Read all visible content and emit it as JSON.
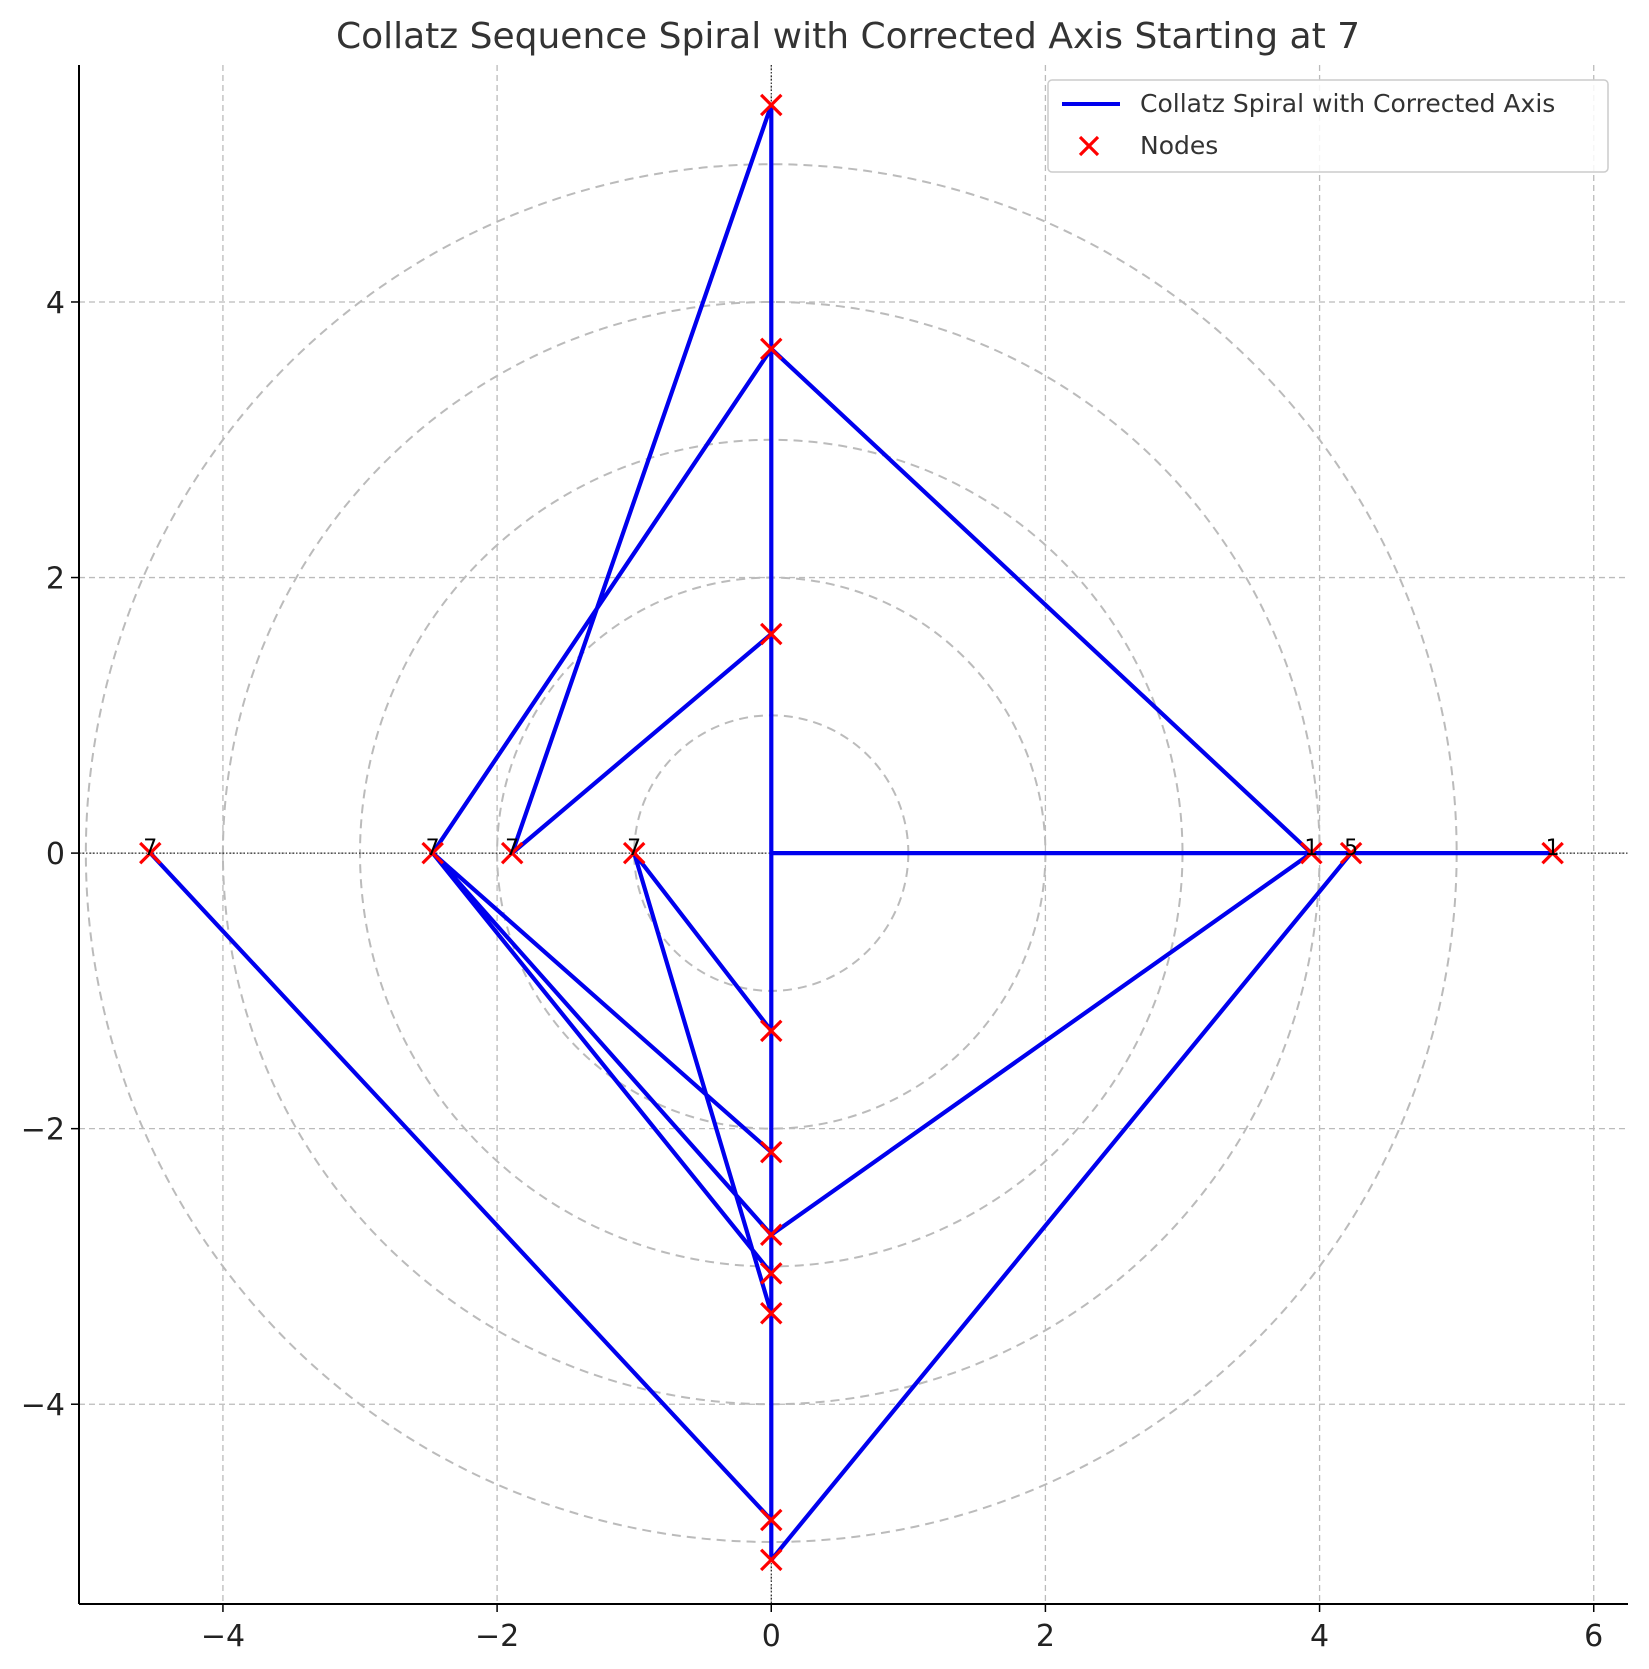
{
  "chart_data": {
    "type": "line",
    "title": "Collatz Sequence Spiral with Corrected Axis Starting at 7",
    "xlabel": "",
    "ylabel": "",
    "xlim": [
      -5.05,
      6.25
    ],
    "ylim": [
      -5.45,
      5.72
    ],
    "xticks": [
      -4,
      -2,
      0,
      2,
      4,
      6
    ],
    "yticks": [
      -4,
      -2,
      0,
      2,
      4
    ],
    "xtick_labels": [
      "−4",
      "−2",
      "0",
      "2",
      "4",
      "6"
    ],
    "ytick_labels": [
      "−4",
      "−2",
      "0",
      "2",
      "4"
    ],
    "grid": true,
    "legend_position": "top-right",
    "reference_circles": [
      1,
      2,
      3,
      4,
      5
    ],
    "series": [
      {
        "name": "Collatz Spiral with Corrected Axis",
        "kind": "line",
        "color": "#0000ee",
        "x": [
          -4.53,
          0,
          0,
          -1.89,
          0,
          0,
          -2.47,
          0,
          0,
          3.94,
          0,
          0,
          -2.47,
          0,
          0,
          -1.0,
          0,
          0,
          4.23,
          0,
          0,
          5.7,
          0,
          0
        ],
        "y": [
          0,
          -4.84,
          5.43,
          0,
          1.59,
          3.66,
          0,
          -2.17,
          -2.77,
          0,
          3.66,
          -3.05,
          0,
          -2.77,
          -3.34,
          0,
          -1.29,
          -5.13,
          0,
          0,
          0,
          0,
          0,
          0
        ]
      },
      {
        "name": "Nodes",
        "kind": "scatter",
        "marker": "x",
        "color": "#ff0000",
        "x": [
          -4.53,
          -2.47,
          -1.89,
          -1.0,
          0,
          0,
          0,
          0,
          0,
          0,
          0,
          0,
          0,
          0,
          3.94,
          4.23,
          5.7
        ],
        "y": [
          0,
          0,
          0,
          0,
          5.43,
          3.66,
          1.59,
          -1.29,
          -2.17,
          -2.77,
          -3.05,
          -3.34,
          -4.84,
          -5.13,
          0,
          0,
          0
        ]
      }
    ],
    "node_labels": [
      {
        "text": "7",
        "x": -4.53,
        "y": 0
      },
      {
        "text": "7",
        "x": -2.47,
        "y": 0
      },
      {
        "text": "7",
        "x": -1.89,
        "y": 0
      },
      {
        "text": "7",
        "x": -1.0,
        "y": 0
      },
      {
        "text": "1",
        "x": 3.94,
        "y": 0
      },
      {
        "text": "5",
        "x": 4.23,
        "y": 0
      },
      {
        "text": "1",
        "x": 5.7,
        "y": 0
      }
    ]
  }
}
